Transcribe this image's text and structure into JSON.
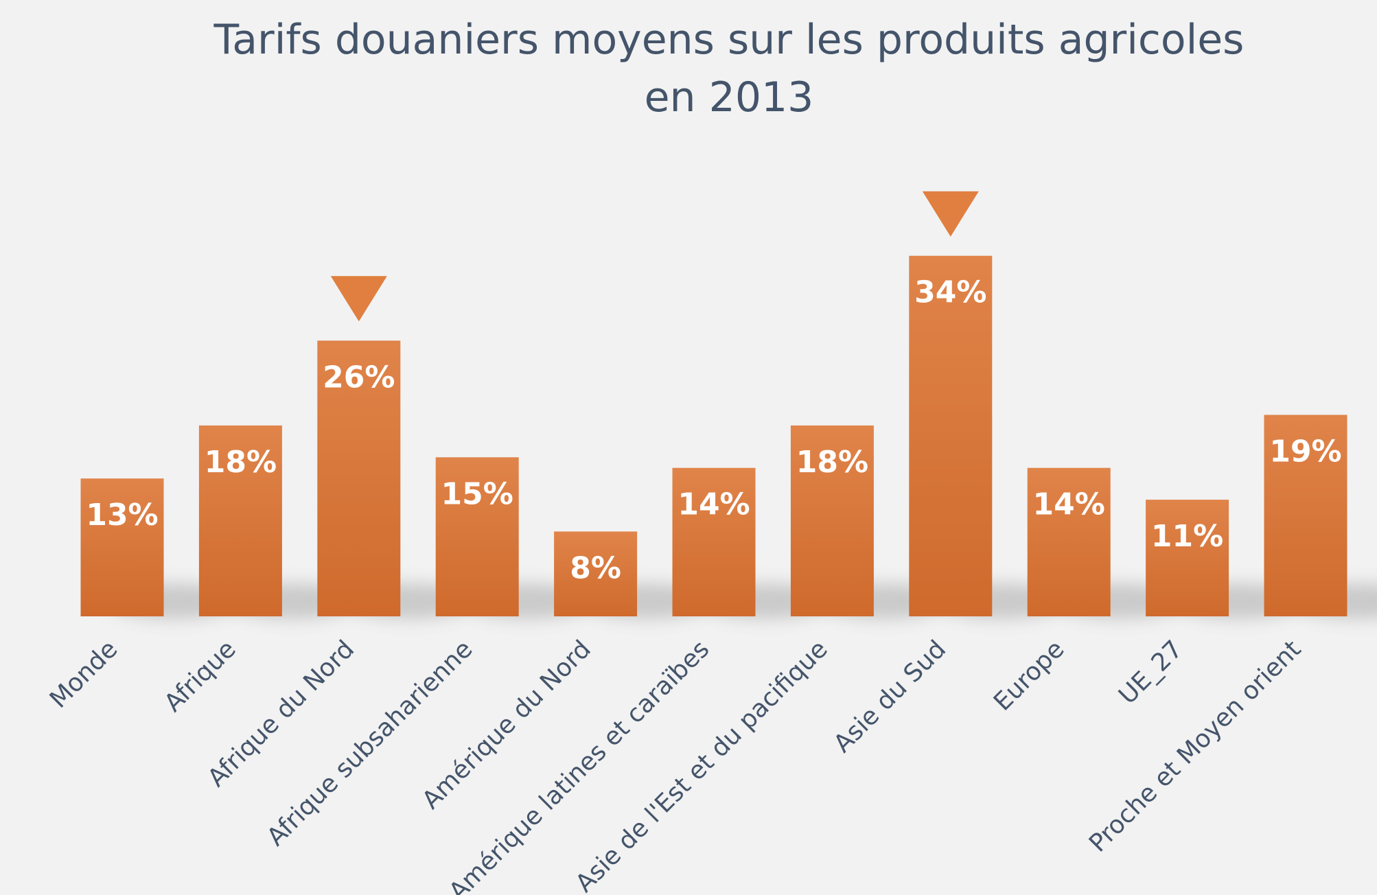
{
  "chart_data": {
    "type": "bar",
    "title_lines": [
      "Tarifs douaniers moyens sur les produits agricoles",
      "en 2013"
    ],
    "categories": [
      "Monde",
      "Afrique",
      "Afrique du Nord",
      "Afrique subsaharienne",
      "Amérique du Nord",
      "Amérique latines et caraïbes",
      "Asie de l'Est et du pacifique",
      "Asie du Sud",
      "Europe",
      "UE_27",
      "Proche et Moyen orient"
    ],
    "values": [
      13,
      18,
      26,
      15,
      8,
      14,
      18,
      34,
      14,
      11,
      19
    ],
    "value_labels": [
      "13%",
      "18%",
      "26%",
      "15%",
      "8%",
      "14%",
      "18%",
      "34%",
      "14%",
      "11%",
      "19%"
    ],
    "highlighted": [
      "Afrique du Nord",
      "Asie du Sud"
    ],
    "xlabel": "",
    "ylabel": "",
    "grid": false,
    "legend": "none",
    "bar_color_top": "#e0844a",
    "bar_color_bottom": "#cf6a2c",
    "marker_color": "#e07f3f"
  }
}
